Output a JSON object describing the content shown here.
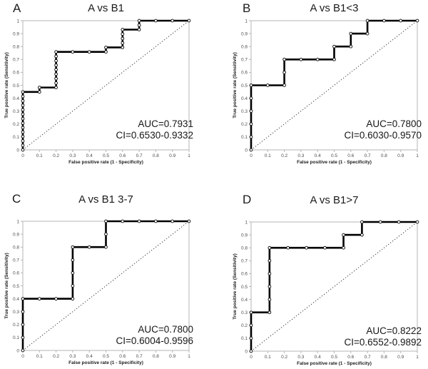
{
  "figure": {
    "colors": {
      "background": "#ffffff",
      "axis": "#b5b5b5",
      "tick_text": "#4d4d4d",
      "text": "#1b1b1b",
      "curve": "#000000",
      "diagonal": "#3a3a3a",
      "marker_fill": "#ffffff"
    }
  },
  "chart_data": [
    {
      "type": "line",
      "panel_letter": "A",
      "title": "A vs B1",
      "xlabel": "False positive rate (1 - Specificity)",
      "ylabel": "True positive rate (Sensitivity)",
      "xlim": [
        0,
        1
      ],
      "ylim": [
        0,
        1
      ],
      "grid": false,
      "xticks": [
        0,
        0.1,
        0.2,
        0.3,
        0.4,
        0.5,
        0.6,
        0.7,
        0.8,
        0.9,
        1
      ],
      "yticks": [
        0,
        0.1,
        0.2,
        0.3,
        0.4,
        0.5,
        0.6,
        0.7,
        0.8,
        0.9,
        1
      ],
      "xtick_labels": [
        "0",
        "0.1",
        "0.2",
        "0.3",
        "0.4",
        "0.5",
        "0.6",
        "0.7",
        "0.8",
        "0.9",
        "1"
      ],
      "ytick_labels": [
        "0",
        "0.1",
        "0.2",
        "0.3",
        "0.4",
        "0.5",
        "0.6",
        "0.7",
        "0.8",
        "0.9",
        "1"
      ],
      "annotations": {
        "auc": "AUC=0.7931",
        "ci": "CI=0.6530-0.9332"
      },
      "series": [
        {
          "name": "ROC curve",
          "step_points": [
            [
              0,
              0
            ],
            [
              0,
              0.4483
            ],
            [
              0.1,
              0.4483
            ],
            [
              0.1,
              0.4828
            ],
            [
              0.2,
              0.4828
            ],
            [
              0.2,
              0.7586
            ],
            [
              0.5,
              0.7586
            ],
            [
              0.5,
              0.7931
            ],
            [
              0.6,
              0.7931
            ],
            [
              0.6,
              0.931
            ],
            [
              0.7,
              0.931
            ],
            [
              0.7,
              1
            ],
            [
              1,
              1
            ]
          ],
          "markers": [
            [
              0,
              0
            ],
            [
              0,
              0.0345
            ],
            [
              0,
              0.069
            ],
            [
              0,
              0.1034
            ],
            [
              0,
              0.1379
            ],
            [
              0,
              0.1724
            ],
            [
              0,
              0.2069
            ],
            [
              0,
              0.2414
            ],
            [
              0,
              0.2759
            ],
            [
              0,
              0.3103
            ],
            [
              0,
              0.3448
            ],
            [
              0,
              0.3793
            ],
            [
              0,
              0.4138
            ],
            [
              0,
              0.4483
            ],
            [
              0.1,
              0.4483
            ],
            [
              0.1,
              0.4828
            ],
            [
              0.2,
              0.4828
            ],
            [
              0.2,
              0.5172
            ],
            [
              0.2,
              0.5517
            ],
            [
              0.2,
              0.5862
            ],
            [
              0.2,
              0.6207
            ],
            [
              0.2,
              0.6552
            ],
            [
              0.2,
              0.6897
            ],
            [
              0.2,
              0.7241
            ],
            [
              0.2,
              0.7586
            ],
            [
              0.3,
              0.7586
            ],
            [
              0.4,
              0.7586
            ],
            [
              0.5,
              0.7586
            ],
            [
              0.5,
              0.7931
            ],
            [
              0.6,
              0.7931
            ],
            [
              0.6,
              0.8276
            ],
            [
              0.6,
              0.8621
            ],
            [
              0.6,
              0.8966
            ],
            [
              0.6,
              0.931
            ],
            [
              0.7,
              0.931
            ],
            [
              0.7,
              0.9655
            ],
            [
              0.7,
              1
            ],
            [
              0.8,
              1
            ],
            [
              0.9,
              1
            ],
            [
              1,
              1
            ]
          ]
        },
        {
          "name": "reference diagonal",
          "style": "dotted",
          "points": [
            [
              0,
              0
            ],
            [
              1,
              1
            ]
          ]
        }
      ]
    },
    {
      "type": "line",
      "panel_letter": "B",
      "title": "A vs B1<3",
      "xlabel": "False positive rate (1 - Specificity)",
      "ylabel": "True positive rate (Sensitivity)",
      "xlim": [
        0,
        1
      ],
      "ylim": [
        0,
        1
      ],
      "grid": false,
      "xticks": [
        0,
        0.1,
        0.2,
        0.3,
        0.4,
        0.5,
        0.6,
        0.7,
        0.8,
        0.9,
        1
      ],
      "yticks": [
        0,
        0.1,
        0.2,
        0.3,
        0.4,
        0.5,
        0.6,
        0.7,
        0.8,
        0.9,
        1
      ],
      "xtick_labels": [
        "0",
        "0.1",
        "0.2",
        "0.3",
        "0.4",
        "0.5",
        "0.6",
        "0.7",
        "0.8",
        "0.9",
        "1"
      ],
      "ytick_labels": [
        "0",
        "0.1",
        "0.2",
        "0.3",
        "0.4",
        "0.5",
        "0.6",
        "0.7",
        "0.8",
        "0.9",
        "1"
      ],
      "annotations": {
        "auc": "AUC=0.7800",
        "ci": "CI=0.6030-0.9570"
      },
      "series": [
        {
          "name": "ROC curve",
          "step_points": [
            [
              0,
              0
            ],
            [
              0,
              0.5
            ],
            [
              0.2,
              0.5
            ],
            [
              0.2,
              0.7
            ],
            [
              0.5,
              0.7
            ],
            [
              0.5,
              0.8
            ],
            [
              0.6,
              0.8
            ],
            [
              0.6,
              0.9
            ],
            [
              0.7,
              0.9
            ],
            [
              0.7,
              1
            ],
            [
              1,
              1
            ]
          ],
          "markers": [
            [
              0,
              0
            ],
            [
              0,
              0.1
            ],
            [
              0,
              0.2
            ],
            [
              0,
              0.3
            ],
            [
              0,
              0.4
            ],
            [
              0,
              0.5
            ],
            [
              0.1,
              0.5
            ],
            [
              0.2,
              0.5
            ],
            [
              0.2,
              0.6
            ],
            [
              0.2,
              0.7
            ],
            [
              0.3,
              0.7
            ],
            [
              0.4,
              0.7
            ],
            [
              0.5,
              0.7
            ],
            [
              0.5,
              0.8
            ],
            [
              0.6,
              0.8
            ],
            [
              0.6,
              0.9
            ],
            [
              0.7,
              0.9
            ],
            [
              0.7,
              1
            ],
            [
              0.8,
              1
            ],
            [
              0.9,
              1
            ],
            [
              1,
              1
            ]
          ]
        },
        {
          "name": "reference diagonal",
          "style": "dotted",
          "points": [
            [
              0,
              0
            ],
            [
              1,
              1
            ]
          ]
        }
      ]
    },
    {
      "type": "line",
      "panel_letter": "C",
      "title": "A vs B1 3-7",
      "xlabel": "False positive rate (1 - Specificity)",
      "ylabel": "True positive rate (Sensitivity)",
      "xlim": [
        0,
        1
      ],
      "ylim": [
        0,
        1
      ],
      "grid": false,
      "xticks": [
        0,
        0.1,
        0.2,
        0.3,
        0.4,
        0.5,
        0.6,
        0.7,
        0.8,
        0.9,
        1
      ],
      "yticks": [
        0,
        0.1,
        0.2,
        0.3,
        0.4,
        0.5,
        0.6,
        0.7,
        0.8,
        0.9,
        1
      ],
      "xtick_labels": [
        "0",
        "0.1",
        "0.2",
        "0.3",
        "0.4",
        "0.5",
        "0.6",
        "0.7",
        "0.8",
        "0.9",
        "1"
      ],
      "ytick_labels": [
        "0",
        "0.1",
        "0.2",
        "0.3",
        "0.4",
        "0.5",
        "0.6",
        "0.7",
        "0.8",
        "0.9",
        "1"
      ],
      "annotations": {
        "auc": "AUC=0.7800",
        "ci": "CI=0.6004-0.9596"
      },
      "series": [
        {
          "name": "ROC curve",
          "step_points": [
            [
              0,
              0
            ],
            [
              0,
              0.4
            ],
            [
              0.3,
              0.4
            ],
            [
              0.3,
              0.8
            ],
            [
              0.5,
              0.8
            ],
            [
              0.5,
              1
            ],
            [
              1,
              1
            ]
          ],
          "markers": [
            [
              0,
              0
            ],
            [
              0,
              0.1
            ],
            [
              0,
              0.2
            ],
            [
              0,
              0.3
            ],
            [
              0,
              0.4
            ],
            [
              0.1,
              0.4
            ],
            [
              0.2,
              0.4
            ],
            [
              0.3,
              0.4
            ],
            [
              0.3,
              0.5
            ],
            [
              0.3,
              0.6
            ],
            [
              0.3,
              0.7
            ],
            [
              0.3,
              0.8
            ],
            [
              0.4,
              0.8
            ],
            [
              0.5,
              0.8
            ],
            [
              0.5,
              0.9
            ],
            [
              0.5,
              1
            ],
            [
              0.6,
              1
            ],
            [
              0.7,
              1
            ],
            [
              0.8,
              1
            ],
            [
              0.9,
              1
            ],
            [
              1,
              1
            ]
          ]
        },
        {
          "name": "reference diagonal",
          "style": "dotted",
          "points": [
            [
              0,
              0
            ],
            [
              1,
              1
            ]
          ]
        }
      ]
    },
    {
      "type": "line",
      "panel_letter": "D",
      "title": "A vs B1>7",
      "xlabel": "False positive rate (1 - Specificity)",
      "ylabel": "True positive rate (Sensitivity)",
      "xlim": [
        0,
        1
      ],
      "ylim": [
        0,
        1
      ],
      "grid": false,
      "xticks": [
        0,
        0.1,
        0.2,
        0.3,
        0.4,
        0.5,
        0.6,
        0.7,
        0.8,
        0.9,
        1
      ],
      "yticks": [
        0,
        0.1,
        0.2,
        0.3,
        0.4,
        0.5,
        0.6,
        0.7,
        0.8,
        0.9,
        1
      ],
      "xtick_labels": [
        "0",
        "0.1",
        "0.2",
        "0.3",
        "0.4",
        "0.5",
        "0.6",
        "0.7",
        "0.8",
        "0.9",
        "1"
      ],
      "ytick_labels": [
        "0",
        "0.1",
        "0.2",
        "0.3",
        "0.4",
        "0.5",
        "0.6",
        "0.7",
        "0.8",
        "0.9",
        "1"
      ],
      "annotations": {
        "auc": "AUC=0.8222",
        "ci": "CI=0.6552-0.9892"
      },
      "series": [
        {
          "name": "ROC curve",
          "step_points": [
            [
              0,
              0
            ],
            [
              0,
              0.3
            ],
            [
              0.111,
              0.3
            ],
            [
              0.111,
              0.8
            ],
            [
              0.556,
              0.8
            ],
            [
              0.556,
              0.9
            ],
            [
              0.667,
              0.9
            ],
            [
              0.667,
              1
            ],
            [
              1,
              1
            ]
          ],
          "markers": [
            [
              0,
              0
            ],
            [
              0,
              0.1
            ],
            [
              0,
              0.2
            ],
            [
              0,
              0.3
            ],
            [
              0.111,
              0.3
            ],
            [
              0.111,
              0.4
            ],
            [
              0.111,
              0.5
            ],
            [
              0.111,
              0.6
            ],
            [
              0.111,
              0.7
            ],
            [
              0.111,
              0.8
            ],
            [
              0.222,
              0.8
            ],
            [
              0.333,
              0.8
            ],
            [
              0.444,
              0.8
            ],
            [
              0.556,
              0.8
            ],
            [
              0.556,
              0.9
            ],
            [
              0.667,
              0.9
            ],
            [
              0.667,
              1
            ],
            [
              0.778,
              1
            ],
            [
              0.889,
              1
            ],
            [
              1,
              1
            ]
          ]
        },
        {
          "name": "reference diagonal",
          "style": "dotted",
          "points": [
            [
              0,
              0
            ],
            [
              1,
              1
            ]
          ]
        }
      ]
    }
  ]
}
